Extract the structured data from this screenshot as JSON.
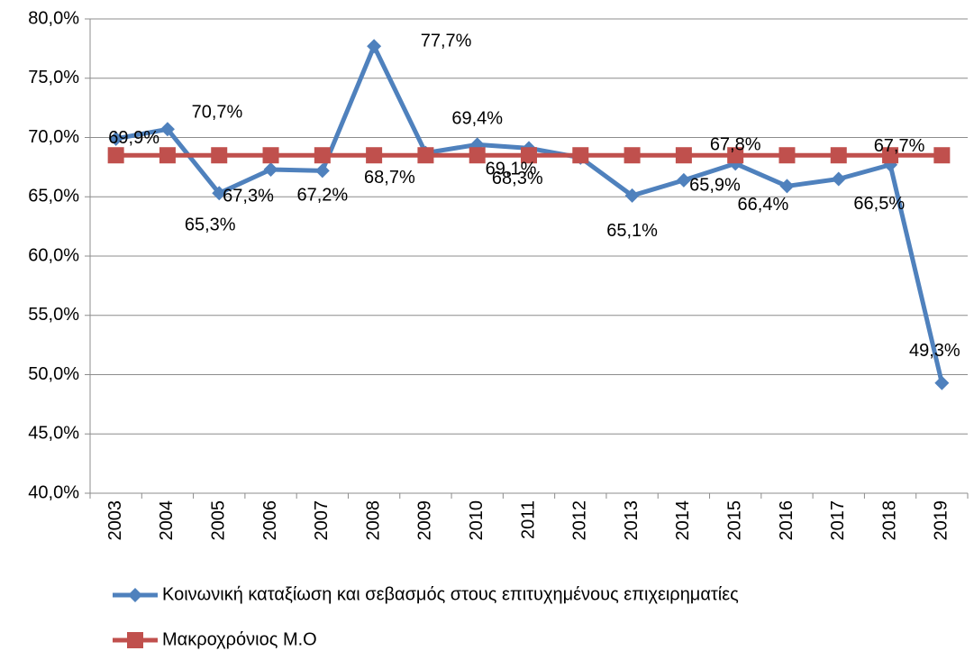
{
  "chart_data": {
    "type": "line",
    "categories": [
      "2003",
      "2004",
      "2005",
      "2006",
      "2007",
      "2008",
      "2009",
      "2010",
      "2011",
      "2012",
      "2013",
      "2014",
      "2015",
      "2016",
      "2017",
      "2018",
      "2019"
    ],
    "series": [
      {
        "name": "Κοινωνική καταξίωση και σεβασμός στους επιτυχημένους επιχειρηματίες",
        "color": "#4f81bd",
        "marker": "diamond",
        "values": [
          69.9,
          70.7,
          65.3,
          67.3,
          67.2,
          77.7,
          68.7,
          69.4,
          69.1,
          68.3,
          65.1,
          66.4,
          67.8,
          65.9,
          66.5,
          67.7,
          49.3
        ],
        "value_labels": [
          "69,9%",
          "70,7%",
          "65,3%",
          "67,3%",
          "67,2%",
          "77,7%",
          "68,7%",
          "69,4%",
          "69,1%",
          "68,3%",
          "65,1%",
          "66,4%",
          "67,8%",
          "65,9%",
          "66,5%",
          "67,7%",
          "49,3%"
        ]
      },
      {
        "name": "Μακροχρόνιος Μ.Ο",
        "color": "#c0504d",
        "marker": "square",
        "values": [
          68.5,
          68.5,
          68.5,
          68.5,
          68.5,
          68.5,
          68.5,
          68.5,
          68.5,
          68.5,
          68.5,
          68.5,
          68.5,
          68.5,
          68.5,
          68.5,
          68.5
        ]
      }
    ],
    "ylim": [
      40,
      80
    ],
    "yticks": [
      {
        "value": 40,
        "label": "40,0%"
      },
      {
        "value": 45,
        "label": "45,0%"
      },
      {
        "value": 50,
        "label": "50,0%"
      },
      {
        "value": 55,
        "label": "55,0%"
      },
      {
        "value": 60,
        "label": "60,0%"
      },
      {
        "value": 65,
        "label": "65,0%"
      },
      {
        "value": 70,
        "label": "70,0%"
      },
      {
        "value": 75,
        "label": "75,0%"
      },
      {
        "value": 80,
        "label": "80,0%"
      }
    ],
    "grid": true
  }
}
